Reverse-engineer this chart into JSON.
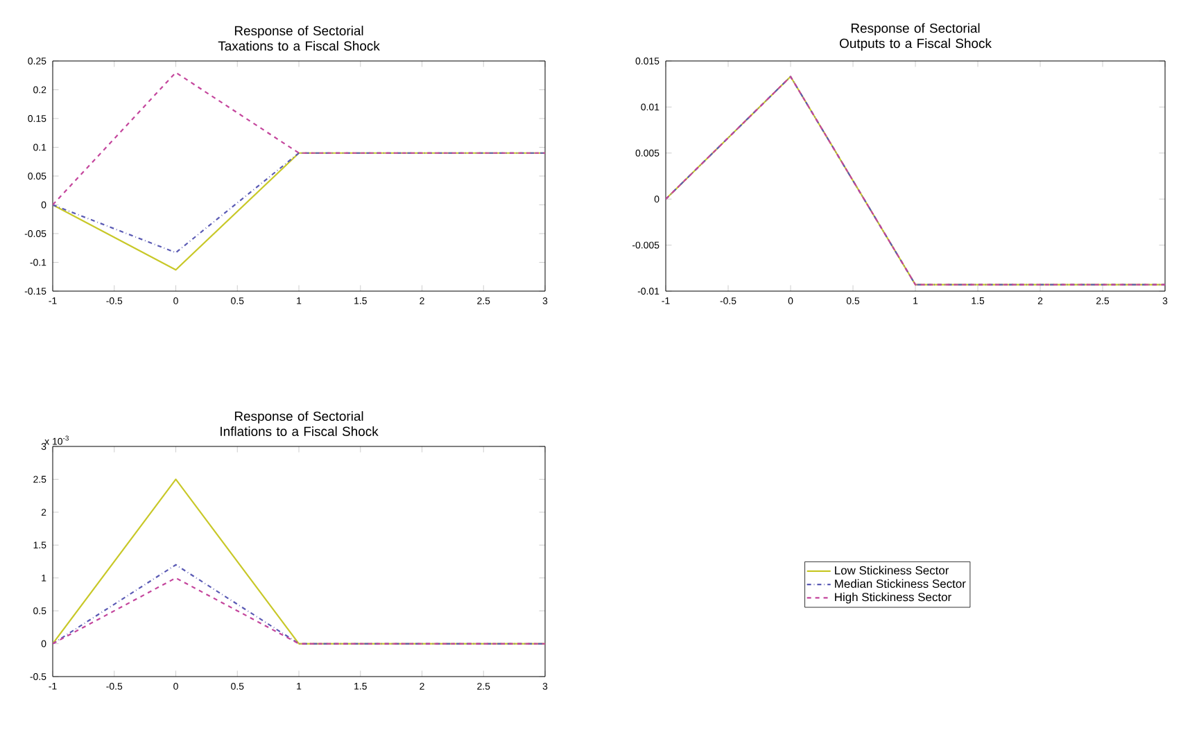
{
  "chart_data": [
    {
      "type": "line",
      "title": "Response of Sectorial Taxations to a Fiscal Shock",
      "x": [
        -1,
        0,
        1,
        2,
        3
      ],
      "series": [
        {
          "color": "#c8c828",
          "line_style": "solid",
          "values": [
            0,
            -0.113,
            0.09,
            0.09,
            0.09
          ]
        },
        {
          "color": "#5a5ab4",
          "line_style": "dashdot",
          "values": [
            0,
            -0.083,
            0.09,
            0.09,
            0.09
          ]
        },
        {
          "color": "#c4459c",
          "line_style": "dashed",
          "values": [
            0,
            0.23,
            0.09,
            0.09,
            0.09
          ]
        }
      ],
      "xlim": [
        -1,
        3
      ],
      "ylim": [
        -0.15,
        0.25
      ],
      "xticks": [
        -1,
        -0.5,
        0,
        0.5,
        1,
        1.5,
        2,
        2.5,
        3
      ],
      "yticks": [
        -0.15,
        -0.1,
        -0.05,
        0,
        0.05,
        0.1,
        0.15,
        0.2,
        0.25
      ]
    },
    {
      "type": "line",
      "title": "Response of Sectorial Outputs to a Fiscal Shock",
      "x": [
        -1,
        0,
        1,
        2,
        3
      ],
      "series": [
        {
          "color": "#c8c828",
          "line_style": "solid",
          "values": [
            0,
            0.0133,
            -0.0093,
            -0.0093,
            -0.0093
          ]
        },
        {
          "color": "#5a5ab4",
          "line_style": "dashdot",
          "values": [
            0,
            0.0133,
            -0.0093,
            -0.0093,
            -0.0093
          ]
        },
        {
          "color": "#c4459c",
          "line_style": "dashed",
          "values": [
            0,
            0.0133,
            -0.0093,
            -0.0093,
            -0.0093
          ]
        }
      ],
      "xlim": [
        -1,
        3
      ],
      "ylim": [
        -0.01,
        0.015
      ],
      "xticks": [
        -1,
        -0.5,
        0,
        0.5,
        1,
        1.5,
        2,
        2.5,
        3
      ],
      "yticks": [
        -0.01,
        -0.005,
        0,
        0.005,
        0.01,
        0.015
      ]
    },
    {
      "type": "line",
      "title": "Response of Sectorial Inflations to a Fiscal Shock",
      "annotations": [
        "x 10$^{-3}$"
      ],
      "x": [
        -1,
        0,
        1,
        2,
        3
      ],
      "series": [
        {
          "name": "Low Stickiness Sector",
          "color": "#c8c828",
          "line_style": "solid",
          "values": [
            0,
            2.5,
            0,
            0,
            0
          ]
        },
        {
          "name": "Median Stickiness Sector",
          "color": "#5a5ab4",
          "line_style": "dashdot",
          "values": [
            0,
            1.2,
            0,
            0,
            0
          ]
        },
        {
          "name": "High Stickiness Sector",
          "color": "#c4459c",
          "line_style": "dashed",
          "values": [
            0,
            1.0,
            0,
            0,
            0
          ]
        }
      ],
      "legend": "right",
      "xlim": [
        -1,
        3
      ],
      "ylim": [
        -0.5,
        3
      ],
      "xticks": [
        -1,
        -0.5,
        0,
        0.5,
        1,
        1.5,
        2,
        2.5,
        3
      ],
      "yticks": [
        -0.5,
        0,
        0.5,
        1,
        1.5,
        2,
        2.5,
        3
      ]
    }
  ]
}
